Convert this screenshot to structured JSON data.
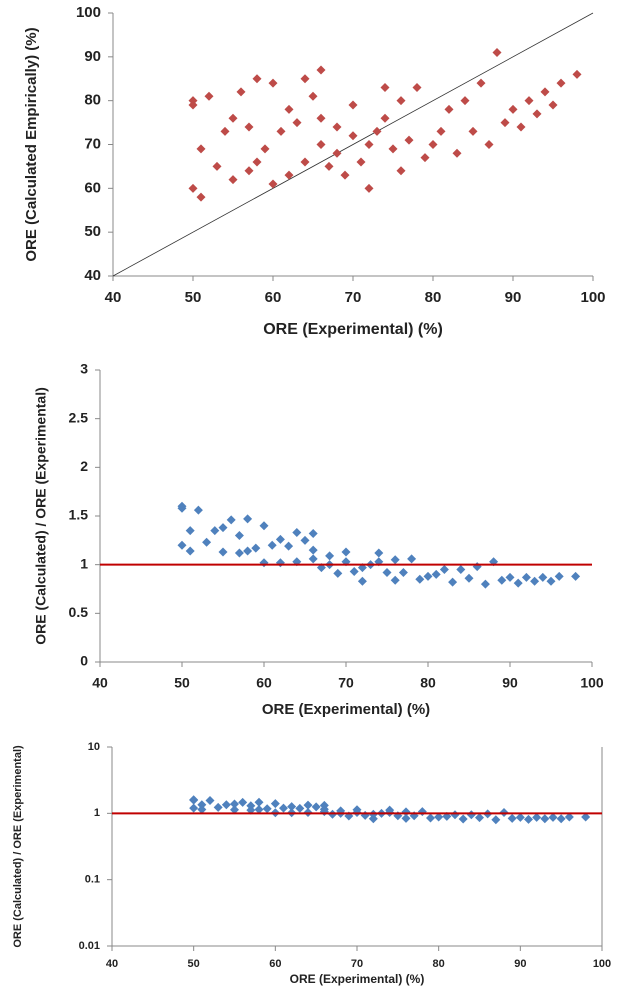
{
  "chart_data": [
    {
      "type": "scatter",
      "x_label": "ORE (Experimental) (%)",
      "y_label": "ORE (Calculated Empirically) (%)",
      "color": "#be4b48",
      "xlim": [
        40,
        100
      ],
      "ylim": [
        40,
        100
      ],
      "xticks": [
        40,
        50,
        60,
        70,
        80,
        90,
        100
      ],
      "yticks": [
        40,
        50,
        60,
        70,
        80,
        90,
        100
      ],
      "identity_line": true,
      "log_y": false,
      "x": [
        50,
        50,
        51,
        52,
        50,
        51,
        53,
        54,
        55,
        56,
        57,
        58,
        60,
        62,
        64,
        66,
        65,
        63,
        61,
        59,
        57,
        55,
        58,
        60,
        62,
        64,
        66,
        68,
        70,
        72,
        74,
        76,
        78,
        73,
        71,
        69,
        67,
        75,
        77,
        79,
        80,
        82,
        84,
        86,
        88,
        83,
        85,
        87,
        89,
        90,
        92,
        94,
        96,
        98,
        91,
        93,
        95,
        81,
        76,
        72,
        68,
        66,
        70,
        74
      ],
      "values": [
        80,
        79,
        69,
        81,
        60,
        58,
        65,
        73,
        76,
        82,
        74,
        85,
        84,
        78,
        85,
        87,
        81,
        75,
        73,
        69,
        64,
        62,
        66,
        61,
        63,
        66,
        70,
        68,
        72,
        70,
        76,
        80,
        83,
        73,
        66,
        63,
        65,
        69,
        71,
        67,
        70,
        78,
        80,
        84,
        91,
        68,
        73,
        70,
        75,
        78,
        80,
        82,
        84,
        86,
        74,
        77,
        79,
        73,
        64,
        60,
        74,
        76,
        79,
        83
      ]
    },
    {
      "type": "scatter",
      "x_label": "ORE (Experimental) (%)",
      "y_label": "ORE (Calculated) / ORE (Experimental)",
      "color": "#4f81bd",
      "xlim": [
        40,
        100
      ],
      "ylim": [
        0,
        3
      ],
      "xticks": [
        40,
        50,
        60,
        70,
        80,
        90,
        100
      ],
      "yticks": [
        0,
        0.5,
        1,
        1.5,
        2,
        2.5,
        3
      ],
      "hline": 1,
      "hline_color": "#c00000",
      "log_y": false,
      "x": [
        50,
        50,
        51,
        52,
        50,
        51,
        53,
        54,
        55,
        56,
        57,
        58,
        60,
        62,
        64,
        66,
        65,
        63,
        61,
        59,
        57,
        55,
        58,
        60,
        62,
        64,
        66,
        68,
        70,
        72,
        74,
        76,
        78,
        73,
        71,
        69,
        67,
        75,
        77,
        79,
        80,
        82,
        84,
        86,
        88,
        83,
        85,
        87,
        89,
        90,
        92,
        94,
        96,
        98,
        91,
        93,
        95,
        81,
        76,
        72,
        68,
        66,
        70,
        74
      ],
      "values": [
        1.6,
        1.58,
        1.35,
        1.56,
        1.2,
        1.14,
        1.23,
        1.35,
        1.38,
        1.46,
        1.3,
        1.47,
        1.4,
        1.26,
        1.33,
        1.32,
        1.25,
        1.19,
        1.2,
        1.17,
        1.12,
        1.13,
        1.14,
        1.02,
        1.02,
        1.03,
        1.06,
        1,
        1.03,
        0.97,
        1.03,
        1.05,
        1.06,
        1,
        0.93,
        0.91,
        0.97,
        0.92,
        0.92,
        0.85,
        0.88,
        0.95,
        0.95,
        0.98,
        1.03,
        0.82,
        0.86,
        0.8,
        0.84,
        0.87,
        0.87,
        0.87,
        0.88,
        0.88,
        0.81,
        0.83,
        0.83,
        0.9,
        0.84,
        0.83,
        1.09,
        1.15,
        1.13,
        1.12
      ]
    },
    {
      "type": "scatter",
      "x_label": "ORE (Experimental) (%)",
      "y_label": "ORE (Calculated) / ORE (Experimental)",
      "color": "#4f81bd",
      "xlim": [
        40,
        100
      ],
      "ylim": [
        0.01,
        10
      ],
      "xticks": [
        40,
        50,
        60,
        70,
        80,
        90,
        100
      ],
      "yticks": [
        0.01,
        0.1,
        1,
        10
      ],
      "hline": 1,
      "hline_color": "#c00000",
      "log_y": true,
      "x": [
        50,
        50,
        51,
        52,
        50,
        51,
        53,
        54,
        55,
        56,
        57,
        58,
        60,
        62,
        64,
        66,
        65,
        63,
        61,
        59,
        57,
        55,
        58,
        60,
        62,
        64,
        66,
        68,
        70,
        72,
        74,
        76,
        78,
        73,
        71,
        69,
        67,
        75,
        77,
        79,
        80,
        82,
        84,
        86,
        88,
        83,
        85,
        87,
        89,
        90,
        92,
        94,
        96,
        98,
        91,
        93,
        95,
        81,
        76,
        72,
        68,
        66,
        70,
        74
      ],
      "values": [
        1.6,
        1.58,
        1.35,
        1.56,
        1.2,
        1.14,
        1.23,
        1.35,
        1.38,
        1.46,
        1.3,
        1.47,
        1.4,
        1.26,
        1.33,
        1.32,
        1.25,
        1.19,
        1.2,
        1.17,
        1.12,
        1.13,
        1.14,
        1.02,
        1.02,
        1.03,
        1.06,
        1,
        1.03,
        0.97,
        1.03,
        1.05,
        1.06,
        1,
        0.93,
        0.91,
        0.97,
        0.92,
        0.92,
        0.85,
        0.88,
        0.95,
        0.95,
        0.98,
        1.03,
        0.82,
        0.86,
        0.8,
        0.84,
        0.87,
        0.87,
        0.87,
        0.88,
        0.88,
        0.81,
        0.83,
        0.83,
        0.9,
        0.84,
        0.83,
        1.09,
        1.15,
        1.13,
        1.12
      ]
    }
  ]
}
